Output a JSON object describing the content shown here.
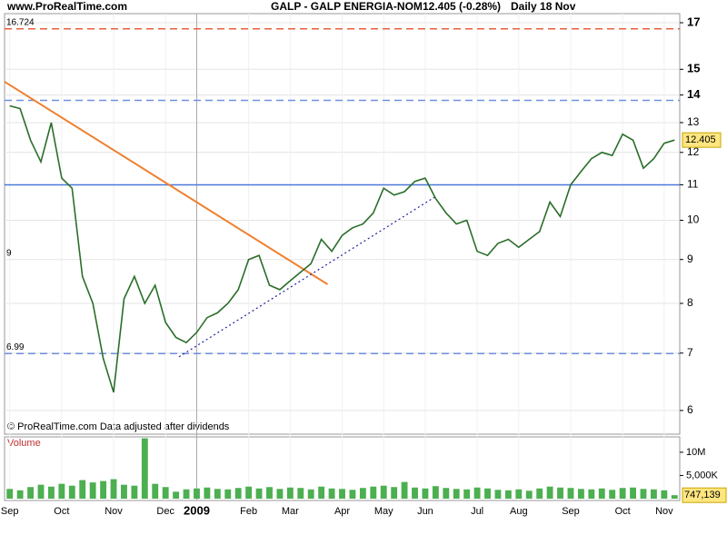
{
  "chart_data": {
    "type": "line",
    "site": "www.ProRealTime.com",
    "title": "GALP - GALP ENERGIA-NOM",
    "quote": "12.405 (-0.28%)",
    "period": "Daily  18 Nov",
    "footer": "© ProRealTime.com  Data adjusted after dividends",
    "log_scale": true,
    "grid": true,
    "categories": [
      "Sep",
      null,
      null,
      null,
      null,
      "Oct",
      null,
      null,
      null,
      null,
      "Nov",
      null,
      null,
      null,
      null,
      "Dec",
      null,
      null,
      "2009",
      null,
      null,
      null,
      null,
      "Feb",
      null,
      null,
      null,
      "Mar",
      null,
      null,
      null,
      null,
      "Apr",
      null,
      null,
      null,
      "May",
      null,
      null,
      null,
      "Jun",
      null,
      null,
      null,
      null,
      "Jul",
      null,
      null,
      null,
      "Aug",
      null,
      null,
      null,
      null,
      "Sep",
      null,
      null,
      null,
      null,
      "Oct",
      null,
      null,
      null,
      "Nov",
      null
    ],
    "series": [
      {
        "name": "GALP",
        "color": "#2a6e2a",
        "values": [
          13.6,
          13.5,
          12.4,
          11.7,
          13.0,
          11.2,
          10.9,
          8.6,
          8.0,
          6.9,
          6.3,
          8.1,
          8.6,
          8.0,
          8.4,
          7.6,
          7.3,
          7.2,
          7.4,
          7.7,
          7.8,
          8.0,
          8.3,
          9.0,
          9.1,
          8.4,
          8.3,
          8.5,
          8.7,
          8.9,
          9.5,
          9.2,
          9.6,
          9.8,
          9.9,
          10.2,
          10.9,
          10.7,
          10.8,
          11.1,
          11.2,
          10.6,
          10.2,
          9.9,
          10.0,
          9.2,
          9.1,
          9.4,
          9.5,
          9.3,
          9.5,
          9.7,
          10.5,
          10.1,
          11.0,
          11.4,
          11.8,
          12.0,
          11.9,
          12.6,
          12.4,
          11.5,
          11.8,
          12.3,
          12.405
        ]
      }
    ],
    "ylim": [
      5.63,
      17.42
    ],
    "yticks": [
      6,
      7,
      8,
      9,
      10,
      11,
      12,
      13,
      14,
      15,
      17
    ],
    "levels": [
      {
        "value": 16.724,
        "label": "16.724",
        "color": "#e8603c",
        "style": "dashed"
      },
      {
        "value": 13.8,
        "color": "#7090e0",
        "style": "dashed"
      },
      {
        "value": 11,
        "color": "#4a78d8",
        "style": "solid"
      },
      {
        "value": 9,
        "label": "9",
        "color": "none",
        "style": "none"
      },
      {
        "value": 6.99,
        "label": "6.99",
        "color": "#7090e0",
        "style": "dashed"
      }
    ],
    "trendlines": [
      {
        "from": [
          -0.5,
          14.51
        ],
        "to": [
          30.6,
          8.42
        ],
        "color": "#f08030",
        "style": "solid"
      },
      {
        "from": [
          16.3,
          6.93
        ],
        "to": [
          40.9,
          10.64
        ],
        "color": "#2020a0",
        "style": "dotted"
      }
    ],
    "volume": {
      "name": "Volume",
      "color": "#4caf50",
      "values": [
        2100000,
        1800000,
        2500000,
        3000000,
        2600000,
        3200000,
        2800000,
        4000000,
        3500000,
        3800000,
        4200000,
        3000000,
        2800000,
        13000000,
        3200000,
        2500000,
        1500000,
        2000000,
        2200000,
        2400000,
        2100000,
        2000000,
        2300000,
        2600000,
        2200000,
        2500000,
        2100000,
        2400000,
        2300000,
        2000000,
        2600000,
        2200000,
        2100000,
        1900000,
        2300000,
        2600000,
        2800000,
        2500000,
        3600000,
        2400000,
        2200000,
        2700000,
        2300000,
        2100000,
        2000000,
        2400000,
        2200000,
        1900000,
        1800000,
        2000000,
        1700000,
        2200000,
        2600000,
        2400000,
        2300000,
        2100000,
        2000000,
        2200000,
        1900000,
        2300000,
        2400000,
        2100000,
        2000000,
        1800000,
        747139
      ],
      "ylim": [
        0,
        13300000
      ],
      "yticks": [
        {
          "value": 10000000,
          "label": "10M"
        },
        {
          "value": 5000000,
          "label": "5,000K"
        }
      ],
      "marker": {
        "value": 747139,
        "label": "747,139"
      }
    }
  }
}
